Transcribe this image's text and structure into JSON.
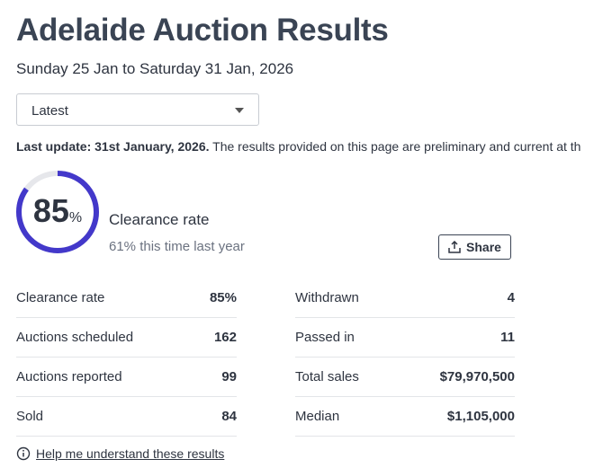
{
  "header": {
    "title": "Adelaide Auction Results",
    "date_range": "Sunday 25 Jan to Saturday 31 Jan, 2026"
  },
  "dropdown": {
    "selected": "Latest"
  },
  "update": {
    "label": "Last update: 31st January, 2026.",
    "text": "The results provided on this page are preliminary and current at th"
  },
  "gauge": {
    "value": 85,
    "unit": "%",
    "label": "Clearance rate",
    "comparison": "61% this time last year"
  },
  "share_button": "Share",
  "stats": {
    "left": [
      [
        "Clearance rate",
        "85%"
      ],
      [
        "Auctions scheduled",
        "162"
      ],
      [
        "Auctions reported",
        "99"
      ],
      [
        "Sold",
        "84"
      ]
    ],
    "right": [
      [
        "Withdrawn",
        "4"
      ],
      [
        "Passed in",
        "11"
      ],
      [
        "Total sales",
        "$79,970,500"
      ],
      [
        "Median",
        "$1,105,000"
      ]
    ]
  },
  "help_link": "Help me understand these results"
}
